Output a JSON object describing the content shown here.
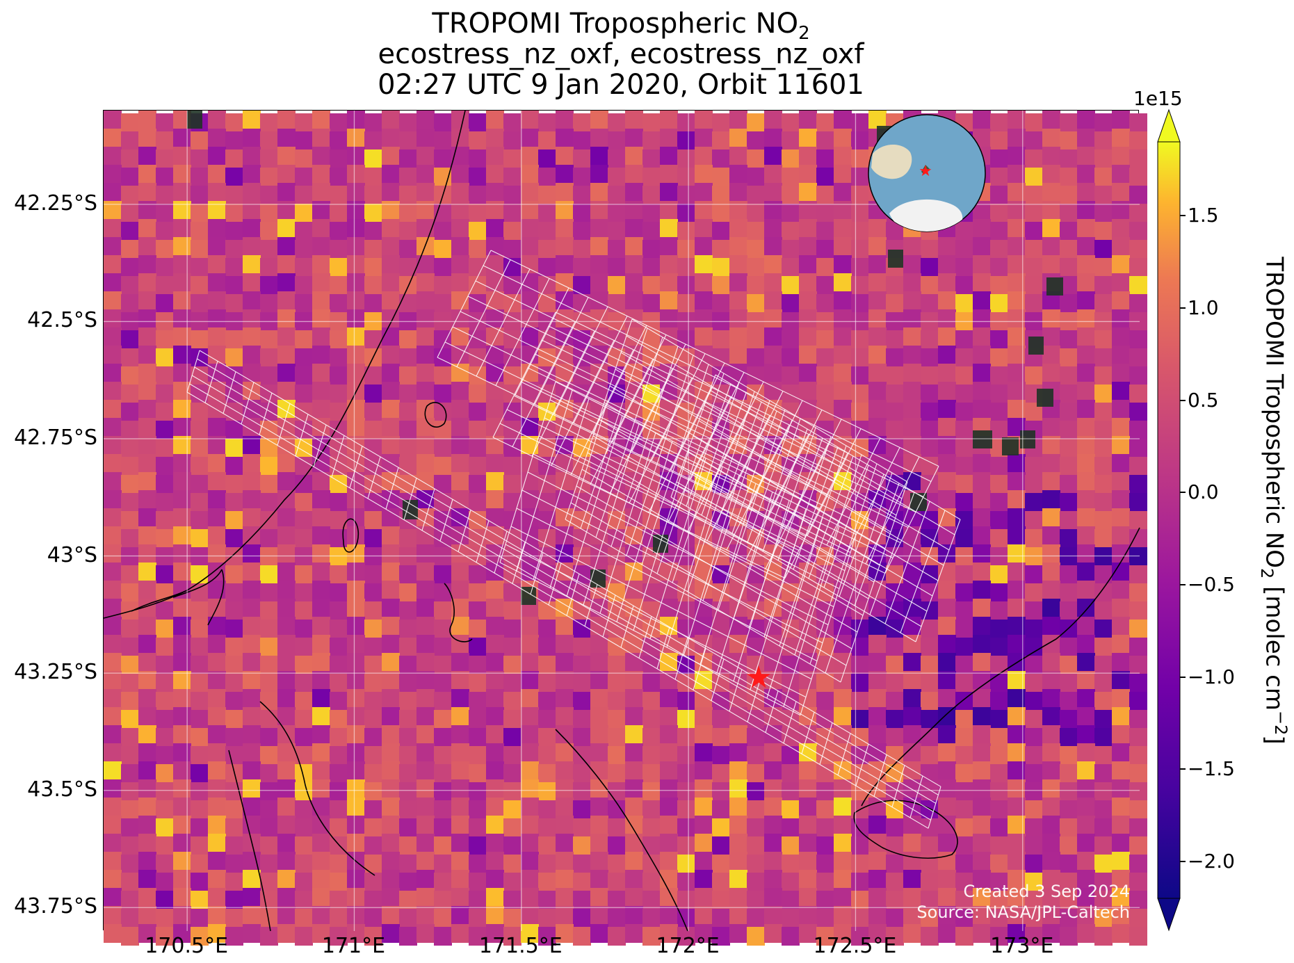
{
  "title": {
    "line1": "TROPOMI Tropospheric NO",
    "line1_sub": "2",
    "line2": "ecostress_nz_oxf, ecostress_nz_oxf",
    "line3": "02:27 UTC 9 Jan 2020, Orbit 11601"
  },
  "map": {
    "lon_range": [
      170.25,
      173.35
    ],
    "lat_range": [
      -43.8,
      -42.05
    ],
    "lat_ticks": [
      {
        "value": -42.25,
        "label": "42.25°S"
      },
      {
        "value": -42.5,
        "label": "42.5°S"
      },
      {
        "value": -42.75,
        "label": "42.75°S"
      },
      {
        "value": -43.0,
        "label": "43°S"
      },
      {
        "value": -43.25,
        "label": "43.25°S"
      },
      {
        "value": -43.5,
        "label": "43.5°S"
      },
      {
        "value": -43.75,
        "label": "43.75°S"
      }
    ],
    "lon_ticks": [
      {
        "value": 170.5,
        "label": "170.5°E"
      },
      {
        "value": 171.0,
        "label": "171°E"
      },
      {
        "value": 171.5,
        "label": "171.5°E"
      },
      {
        "value": 172.0,
        "label": "172°E"
      },
      {
        "value": 172.5,
        "label": "172.5°E"
      },
      {
        "value": 173.0,
        "label": "173°E"
      }
    ],
    "marker": {
      "lon": 172.21,
      "lat": -43.26,
      "color": "#ff1a1a",
      "shape": "star"
    },
    "gridlines": true,
    "colormap": "plasma"
  },
  "colorbar": {
    "range": [
      -2.2,
      1.9
    ],
    "exponent_label": "1e15",
    "ticks": [
      {
        "value": 1.5,
        "label": "1.5"
      },
      {
        "value": 1.0,
        "label": "1.0"
      },
      {
        "value": 0.5,
        "label": "0.5"
      },
      {
        "value": 0.0,
        "label": "0.0"
      },
      {
        "value": -0.5,
        "label": "−0.5"
      },
      {
        "value": -1.0,
        "label": "−1.0"
      },
      {
        "value": -1.5,
        "label": "−1.5"
      },
      {
        "value": -2.0,
        "label": "−2.0"
      }
    ],
    "label_main": "TROPOMI Tropospheric NO",
    "label_sub": "2",
    "label_units": " [molec cm",
    "label_exp": "−2",
    "label_close": "]"
  },
  "inset_globe": {
    "ocean_color": "#6fa6c9",
    "land_color": "#e6dcc0",
    "ice_color": "#f2f2f2",
    "marker_color": "#ff1a1a"
  },
  "credits": {
    "created": "Created 3 Sep 2024",
    "source": "Source: NASA/JPL-Caltech"
  }
}
